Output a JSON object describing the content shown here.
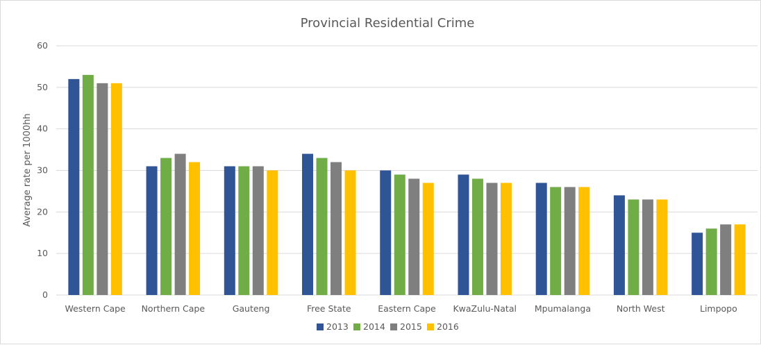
{
  "chart_data": {
    "type": "bar",
    "title": "Provincial Residential Crime",
    "xlabel": "",
    "ylabel": "Average rate per 1000hh",
    "ylim": [
      0,
      60
    ],
    "yticks": [
      0,
      10,
      20,
      30,
      40,
      50,
      60
    ],
    "grid": true,
    "legend": "bottom",
    "categories": [
      "Western Cape",
      "Northern Cape",
      "Gauteng",
      "Free State",
      "Eastern Cape",
      "KwaZulu-Natal",
      "Mpumalanga",
      "North West",
      "Limpopo"
    ],
    "series": [
      {
        "name": "2013",
        "color": "#2f5597",
        "values": [
          52,
          31,
          31,
          34,
          30,
          29,
          27,
          24,
          15
        ]
      },
      {
        "name": "2014",
        "color": "#70ad47",
        "values": [
          53,
          33,
          31,
          33,
          29,
          28,
          26,
          23,
          16
        ]
      },
      {
        "name": "2015",
        "color": "#7f7f7f",
        "values": [
          51,
          34,
          31,
          32,
          28,
          27,
          26,
          23,
          17
        ]
      },
      {
        "name": "2016",
        "color": "#ffc000",
        "values": [
          51,
          32,
          30,
          30,
          27,
          27,
          26,
          23,
          17
        ]
      }
    ]
  }
}
